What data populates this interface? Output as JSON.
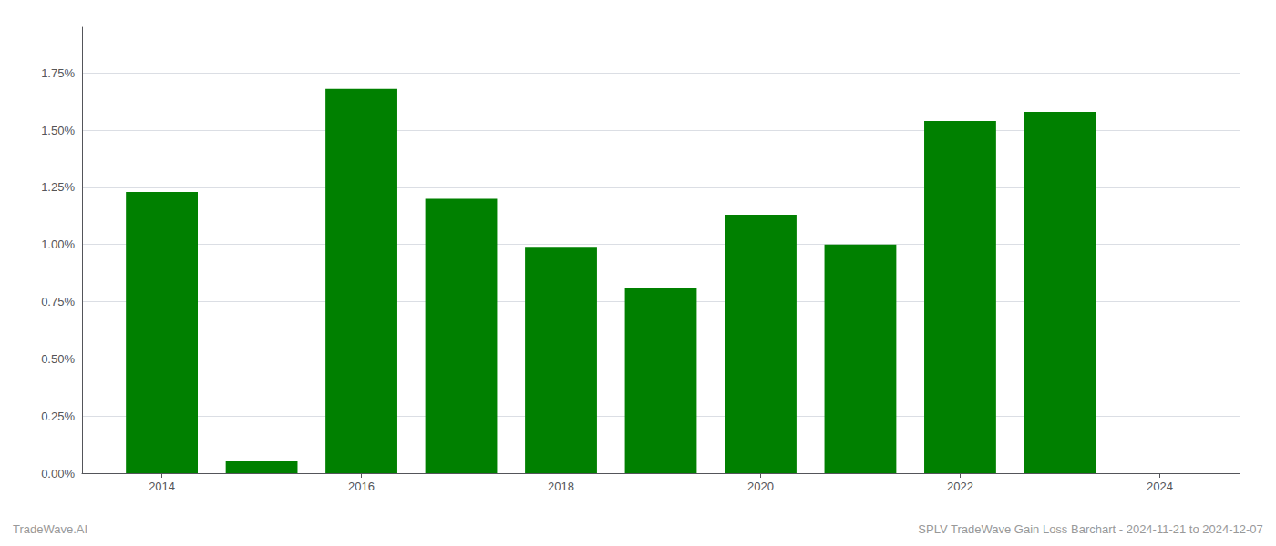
{
  "chart_data": {
    "type": "bar",
    "x": [
      2014,
      2015,
      2016,
      2017,
      2018,
      2019,
      2020,
      2021,
      2022,
      2023
    ],
    "values": [
      0.0123,
      0.00052,
      0.0168,
      0.012,
      0.0099,
      0.0081,
      0.0113,
      0.01,
      0.0154,
      0.0158
    ],
    "color": "#008000",
    "xlim": [
      2013.2,
      2024.8
    ],
    "xticks": [
      2014,
      2016,
      2018,
      2020,
      2022,
      2024
    ],
    "ylim": [
      0,
      0.0195
    ],
    "yticks": [
      {
        "value": 0.0,
        "label": "0.00%"
      },
      {
        "value": 0.0025,
        "label": "0.25%"
      },
      {
        "value": 0.005,
        "label": "0.50%"
      },
      {
        "value": 0.0075,
        "label": "0.75%"
      },
      {
        "value": 0.01,
        "label": "1.00%"
      },
      {
        "value": 0.0125,
        "label": "1.25%"
      },
      {
        "value": 0.015,
        "label": "1.50%"
      },
      {
        "value": 0.0175,
        "label": "1.75%"
      }
    ],
    "grid": true,
    "annotations": [
      "TradeWave.AI",
      "SPLV TradeWave Gain Loss Barchart - 2024-11-21 to 2024-12-07"
    ]
  }
}
